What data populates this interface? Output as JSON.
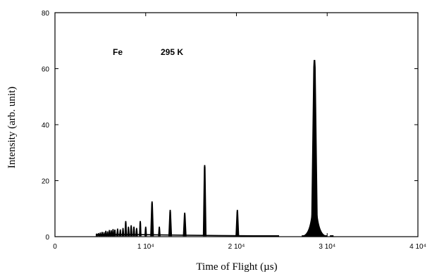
{
  "chart_data": {
    "type": "line",
    "xlabel": "Time of Flight (µs)",
    "ylabel": "Intensity (arb. unit)",
    "xlim": [
      0,
      40000
    ],
    "ylim": [
      0,
      80
    ],
    "x_ticks": [
      {
        "value": 0,
        "label": "0"
      },
      {
        "value": 10000,
        "label": "1 10⁴"
      },
      {
        "value": 20000,
        "label": "2 10⁴"
      },
      {
        "value": 30000,
        "label": "3 10⁴"
      },
      {
        "value": 40000,
        "label": "4 10⁴"
      }
    ],
    "y_ticks": [
      {
        "value": 0,
        "label": "0"
      },
      {
        "value": 20,
        "label": "20"
      },
      {
        "value": 40,
        "label": "40"
      },
      {
        "value": 60,
        "label": "60"
      },
      {
        "value": 80,
        "label": "80"
      }
    ],
    "annotations": [
      "Fe",
      "295 K"
    ],
    "baseline": [
      {
        "x": 4500,
        "y": 0.8
      },
      {
        "x": 8000,
        "y": 0.8
      },
      {
        "x": 12000,
        "y": 0.6
      },
      {
        "x": 18000,
        "y": 0.4
      },
      {
        "x": 22000,
        "y": 0.3
      },
      {
        "x": 24700,
        "y": 0.3
      }
    ],
    "peaks": [
      {
        "x": 4600,
        "y": 1.0
      },
      {
        "x": 4800,
        "y": 1.2
      },
      {
        "x": 5000,
        "y": 1.4
      },
      {
        "x": 5200,
        "y": 1.6
      },
      {
        "x": 5400,
        "y": 1.5
      },
      {
        "x": 5600,
        "y": 2.0
      },
      {
        "x": 5800,
        "y": 1.8
      },
      {
        "x": 6000,
        "y": 2.3
      },
      {
        "x": 6200,
        "y": 2.2
      },
      {
        "x": 6400,
        "y": 2.6
      },
      {
        "x": 6600,
        "y": 2.4
      },
      {
        "x": 6900,
        "y": 2.8
      },
      {
        "x": 7200,
        "y": 2.5
      },
      {
        "x": 7500,
        "y": 3.0
      },
      {
        "x": 7800,
        "y": 5.5
      },
      {
        "x": 8100,
        "y": 3.5
      },
      {
        "x": 8400,
        "y": 4.0
      },
      {
        "x": 8700,
        "y": 3.5
      },
      {
        "x": 9000,
        "y": 3.0
      },
      {
        "x": 9400,
        "y": 5.5
      },
      {
        "x": 10000,
        "y": 3.5
      },
      {
        "x": 10700,
        "y": 12.5
      },
      {
        "x": 11500,
        "y": 3.5
      },
      {
        "x": 12700,
        "y": 9.5
      },
      {
        "x": 14300,
        "y": 8.5
      },
      {
        "x": 16500,
        "y": 25.5
      },
      {
        "x": 20100,
        "y": 9.5
      },
      {
        "x": 28600,
        "y": 63.0
      }
    ]
  }
}
